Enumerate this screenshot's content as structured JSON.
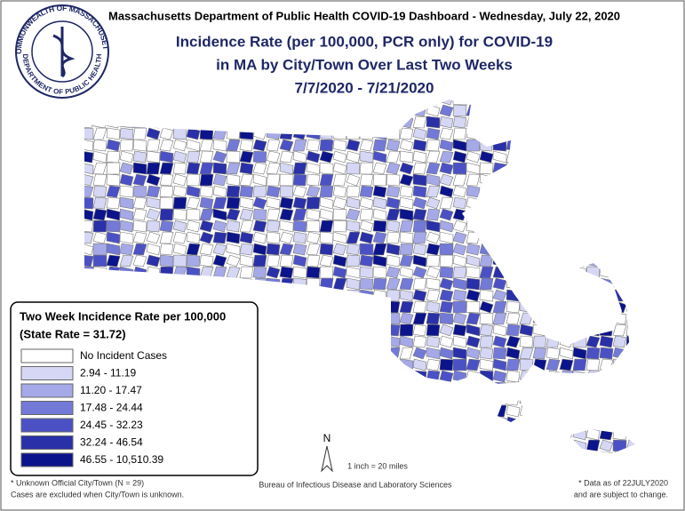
{
  "header": {
    "title": "Massachusetts Department of Public Health COVID-19 Dashboard - Wednesday, July 22, 2020",
    "subtitle_lines": [
      "Incidence Rate (per 100,000, PCR only) for COVID-19",
      "in MA by City/Town Over Last Two Weeks",
      "7/7/2020 - 7/21/2020"
    ]
  },
  "seal": {
    "top_text": "COMMONWEALTH OF MASSACHUSETTS",
    "bottom_text": "DEPARTMENT OF PUBLIC HEALTH"
  },
  "legend": {
    "title": "Two Week Incidence Rate per 100,000",
    "state_rate": "(State Rate = 31.72)",
    "items": [
      {
        "label": "No Incident Cases",
        "color": "#ffffff"
      },
      {
        "label": "2.94 - 11.19",
        "color": "#d5d7f4"
      },
      {
        "label": "11.20 - 17.47",
        "color": "#a5a9e7"
      },
      {
        "label": "17.48 - 24.44",
        "color": "#7379d7"
      },
      {
        "label": "24.45 - 32.23",
        "color": "#4b51c5"
      },
      {
        "label": "32.24 - 46.54",
        "color": "#2a30a8"
      },
      {
        "label": "46.55 - 10,510.39",
        "color": "#0c148b"
      }
    ]
  },
  "map": {
    "north": "N",
    "scale": "1 inch = 20 miles"
  },
  "footer": {
    "note_lines": [
      "* Unknown Official City/Town (N = 29)",
      "Cases are excluded when City/Town is unknown."
    ],
    "credit": "Bureau of Infectious Disease and Laboratory Sciences",
    "data_note_lines": [
      "* Data as of 22JULY2020",
      "and are subject to change."
    ]
  }
}
